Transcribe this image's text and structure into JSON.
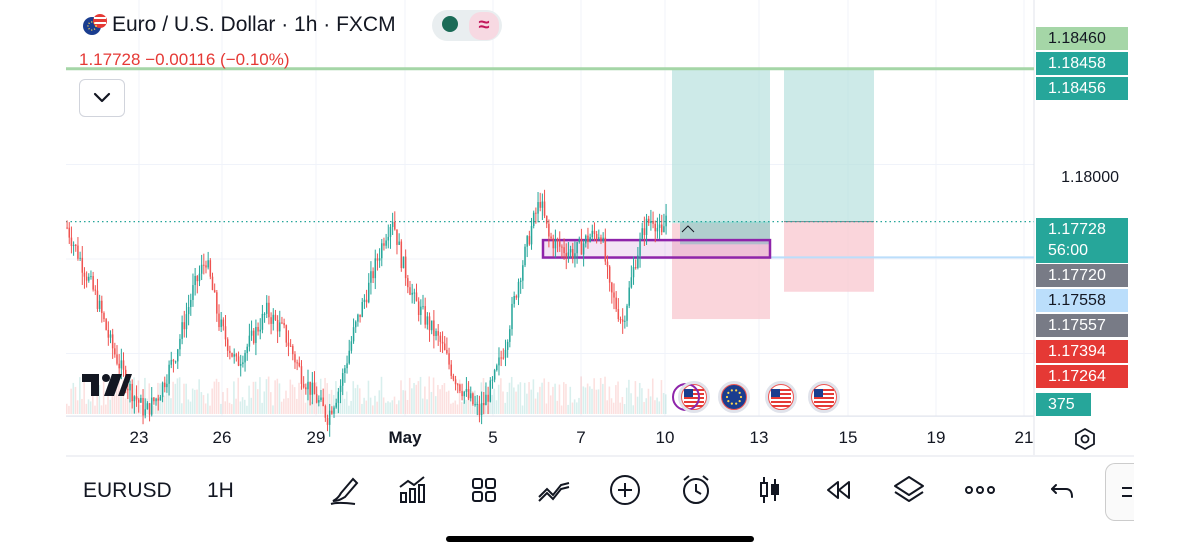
{
  "header": {
    "symbol_title": "Euro / U.S. Dollar · 1h · FXCM",
    "last_price": "1.17728",
    "change": "−0.00116",
    "change_pct": "(−0.10%)",
    "status_wave_glyph": "≈"
  },
  "price_scale": {
    "tags": [
      {
        "label": "1.18460",
        "bg": "#a5d6a7",
        "fg": "#131722"
      },
      {
        "label": "1.18458",
        "bg": "#26a69a",
        "fg": "#ffffff"
      },
      {
        "label": "1.18456",
        "bg": "#26a69a",
        "fg": "#ffffff"
      },
      {
        "label": "1.17728",
        "bg": "#26a69a",
        "fg": "#ffffff"
      },
      {
        "label": "1.17720",
        "bg": "#787b86",
        "fg": "#ffffff"
      },
      {
        "label": "1.17558",
        "bg": "#bbdefb",
        "fg": "#131722"
      },
      {
        "label": "1.17557",
        "bg": "#787b86",
        "fg": "#ffffff"
      },
      {
        "label": "1.17394",
        "bg": "#e53935",
        "fg": "#ffffff"
      },
      {
        "label": "1.17264",
        "bg": "#e53935",
        "fg": "#ffffff"
      },
      {
        "label": "375",
        "bg": "#26a69a",
        "fg": "#ffffff"
      }
    ],
    "axis_label": "1.18000",
    "countdown": "56:00"
  },
  "chart_data": {
    "type": "candlestick",
    "symbol": "EURUSD",
    "timeframe": "1h",
    "x_tick_labels": [
      "23",
      "26",
      "29",
      "May",
      "5",
      "7",
      "10",
      "13",
      "15",
      "19",
      "21"
    ],
    "y_ticks": [
      1.18
    ],
    "ylim": [
      1.1665,
      1.1865
    ],
    "horizontal_lines": [
      {
        "price": 1.18456,
        "color": "#a5d6a7",
        "style": "solid"
      },
      {
        "price": 1.17558,
        "color": "#bbdefb",
        "style": "solid"
      },
      {
        "price": 1.17728,
        "color": "#26a69a",
        "style": "dotted"
      }
    ],
    "positions": [
      {
        "kind": "long",
        "entry": 1.1772,
        "target": 1.18456,
        "stop": 1.17264,
        "start_date": "May 10",
        "end_date": "May 13"
      },
      {
        "kind": "long",
        "entry": 1.17728,
        "target": 1.18456,
        "stop": 1.17394,
        "start_date": "May 13",
        "end_date": "May 15"
      }
    ],
    "zone": {
      "top": 1.1764,
      "bottom": 1.17557,
      "start_date": "May 6",
      "end_date": "May 13"
    },
    "price_path": [
      [
        0,
        1.177
      ],
      [
        8,
        1.175
      ],
      [
        14,
        1.1735
      ],
      [
        20,
        1.1715
      ],
      [
        28,
        1.1695
      ],
      [
        36,
        1.1682
      ],
      [
        42,
        1.169
      ],
      [
        50,
        1.171
      ],
      [
        58,
        1.174
      ],
      [
        64,
        1.1755
      ],
      [
        70,
        1.1725
      ],
      [
        78,
        1.1705
      ],
      [
        84,
        1.1715
      ],
      [
        92,
        1.173
      ],
      [
        100,
        1.172
      ],
      [
        108,
        1.17
      ],
      [
        114,
        1.169
      ],
      [
        120,
        1.168
      ],
      [
        126,
        1.1695
      ],
      [
        132,
        1.172
      ],
      [
        140,
        1.1745
      ],
      [
        146,
        1.1765
      ],
      [
        150,
        1.1775
      ],
      [
        154,
        1.1755
      ],
      [
        160,
        1.1735
      ],
      [
        166,
        1.1725
      ],
      [
        172,
        1.1715
      ],
      [
        178,
        1.17
      ],
      [
        184,
        1.169
      ],
      [
        190,
        1.1682
      ],
      [
        196,
        1.1695
      ],
      [
        202,
        1.1715
      ],
      [
        208,
        1.1745
      ],
      [
        214,
        1.177
      ],
      [
        218,
        1.1783
      ],
      [
        222,
        1.1765
      ],
      [
        228,
        1.176
      ],
      [
        234,
        1.1758
      ],
      [
        240,
        1.1765
      ],
      [
        246,
        1.1768
      ],
      [
        250,
        1.174
      ],
      [
        256,
        1.1725
      ],
      [
        262,
        1.1755
      ],
      [
        266,
        1.177
      ],
      [
        270,
        1.1775
      ],
      [
        274,
        1.1765
      ],
      [
        276,
        1.1776
      ]
    ],
    "last_price": 1.17728,
    "volume_label": "375"
  },
  "events": [
    {
      "name": "us-flag",
      "glyph": "🇺🇸"
    },
    {
      "name": "eu-flag",
      "glyph": "🇪🇺"
    },
    {
      "name": "us-flag",
      "glyph": "🇺🇸"
    },
    {
      "name": "us-flag",
      "glyph": "🇺🇸"
    }
  ],
  "bottom_toolbar": {
    "symbol": "EURUSD",
    "interval": "1H",
    "tools": [
      "draw-pen-icon",
      "indicators-icon",
      "grid-layout-icon",
      "trend-icon",
      "add-icon",
      "alert-clock-icon",
      "candles-icon",
      "replay-icon",
      "layers-icon",
      "more-icon",
      "undo-icon"
    ]
  },
  "colors": {
    "up": "#26a69a",
    "down": "#ef5350",
    "profit_zone": "#b2dfdb",
    "loss_zone": "#f8c7cf",
    "zone_border": "#8e24aa"
  }
}
